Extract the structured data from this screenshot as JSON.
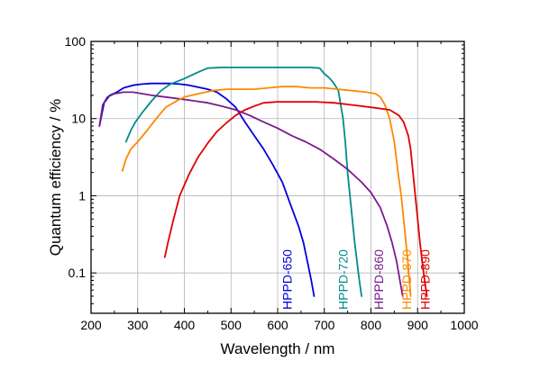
{
  "chart_data": {
    "type": "line",
    "xlabel": "Wavelength / nm",
    "ylabel": "Quantum efficiency / %",
    "xlim": [
      200,
      1000
    ],
    "ylim": [
      0.03,
      100
    ],
    "yscale": "log",
    "grid": true,
    "x_ticks": [
      "200",
      "300",
      "400",
      "500",
      "600",
      "700",
      "800",
      "900",
      "1000"
    ],
    "y_ticks": [
      {
        "value": 0.1,
        "label": "0.1"
      },
      {
        "value": 1,
        "label": "1"
      },
      {
        "value": 10,
        "label": "10"
      },
      {
        "value": 100,
        "label": "100"
      }
    ],
    "series": [
      {
        "name": "HPPD-650",
        "color": "#0000dd",
        "label_x": 620,
        "x": [
          218,
          228,
          240,
          255,
          270,
          290,
          310,
          330,
          350,
          370,
          390,
          410,
          430,
          450,
          470,
          490,
          510,
          530,
          550,
          570,
          590,
          610,
          630,
          645,
          655,
          665,
          672,
          678
        ],
        "y": [
          8,
          16,
          20,
          22,
          25,
          27,
          28,
          28.5,
          28.5,
          28.5,
          28,
          27,
          25.5,
          24,
          22,
          18,
          14,
          9,
          6,
          4,
          2.5,
          1.5,
          0.7,
          0.4,
          0.25,
          0.13,
          0.08,
          0.05
        ]
      },
      {
        "name": "HPPD-720",
        "color": "#008c8c",
        "label_x": 740,
        "x": [
          275,
          285,
          295,
          310,
          330,
          350,
          370,
          400,
          430,
          450,
          480,
          520,
          560,
          600,
          640,
          670,
          690,
          700,
          710,
          720,
          730,
          740,
          745,
          750,
          755,
          760,
          765,
          770,
          775,
          780
        ],
        "y": [
          5,
          7,
          9,
          12,
          17,
          23,
          28,
          33,
          40,
          45,
          46,
          46,
          46,
          46,
          46,
          46,
          45,
          38,
          34,
          29,
          23,
          10,
          5,
          2,
          1,
          0.5,
          0.25,
          0.14,
          0.08,
          0.05
        ]
      },
      {
        "name": "HPPD-860",
        "color": "#7a1a8e",
        "label_x": 816,
        "x": [
          218,
          225,
          235,
          250,
          270,
          290,
          310,
          330,
          360,
          390,
          420,
          450,
          480,
          510,
          540,
          570,
          600,
          630,
          660,
          690,
          720,
          750,
          780,
          800,
          820,
          835,
          845,
          855,
          862,
          868
        ],
        "y": [
          8,
          15,
          19,
          21,
          22,
          22,
          21,
          20,
          19,
          18,
          17,
          16,
          14.5,
          13,
          11,
          9,
          7.5,
          6,
          5,
          4,
          3,
          2.2,
          1.5,
          1.1,
          0.7,
          0.4,
          0.25,
          0.14,
          0.08,
          0.05
        ]
      },
      {
        "name": "HPPD-870",
        "color": "#ff8800",
        "label_x": 876,
        "x": [
          267,
          275,
          285,
          300,
          320,
          340,
          360,
          380,
          400,
          430,
          460,
          490,
          520,
          550,
          580,
          610,
          640,
          670,
          700,
          730,
          760,
          790,
          810,
          820,
          830,
          840,
          850,
          858,
          865,
          870,
          875,
          880,
          885
        ],
        "y": [
          2.1,
          3,
          4,
          5,
          7,
          10,
          14,
          16.5,
          19,
          21,
          23,
          24,
          24,
          24,
          25,
          26,
          26,
          25,
          25,
          24,
          23,
          22,
          21,
          19,
          15,
          10,
          5,
          2,
          1,
          0.5,
          0.25,
          0.12,
          0.05
        ]
      },
      {
        "name": "HPPD-890",
        "color": "#e00000",
        "label_x": 916,
        "x": [
          358,
          365,
          375,
          390,
          410,
          430,
          450,
          470,
          490,
          510,
          530,
          550,
          570,
          600,
          640,
          680,
          720,
          760,
          800,
          840,
          860,
          870,
          880,
          885,
          890,
          895,
          900,
          905,
          910,
          915,
          920
        ],
        "y": [
          0.16,
          0.25,
          0.45,
          1,
          1.9,
          3.2,
          4.8,
          6.8,
          8.8,
          11,
          13,
          14.5,
          16,
          16.5,
          16.5,
          16.5,
          16,
          15,
          14,
          13,
          11,
          9,
          6,
          4,
          2,
          1,
          0.5,
          0.25,
          0.14,
          0.08,
          0.05
        ]
      }
    ]
  }
}
